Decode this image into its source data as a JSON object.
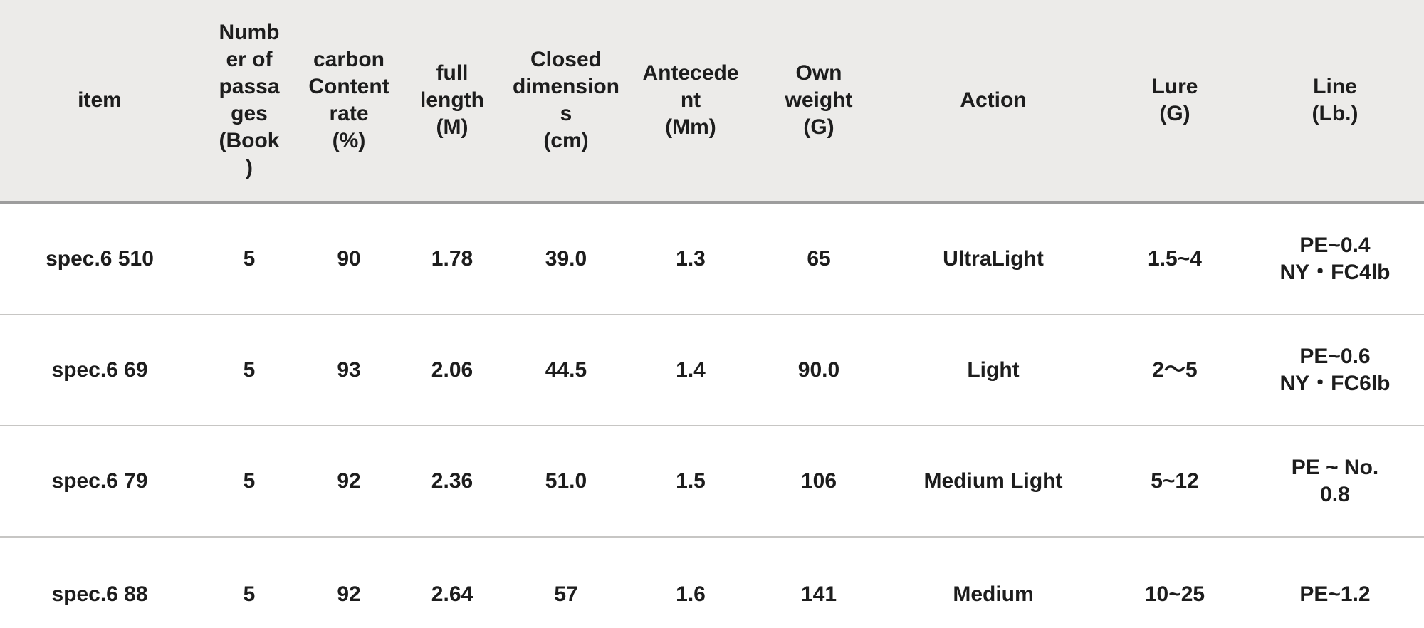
{
  "table": {
    "columns": [
      {
        "id": "item",
        "label": "item"
      },
      {
        "id": "passages",
        "label": "Numb\ner of\npassa\nges\n(Book\n)"
      },
      {
        "id": "carbon-rate",
        "label": "carbon\nContent\nrate\n(%)"
      },
      {
        "id": "full-length",
        "label": "full length\n(M)"
      },
      {
        "id": "closed-dimensions",
        "label": "Closed\ndimension\ns\n(cm)"
      },
      {
        "id": "antecedent",
        "label": "Antecede\nnt\n(Mm)"
      },
      {
        "id": "own-weight",
        "label": "Own\nweight\n(G)"
      },
      {
        "id": "action",
        "label": "Action"
      },
      {
        "id": "lure",
        "label": "Lure\n(G)"
      },
      {
        "id": "line",
        "label": "Line\n(Lb.)"
      }
    ],
    "rows": [
      {
        "cells": [
          "spec.6 510",
          "5",
          "90",
          "1.78",
          "39.0",
          "1.3",
          "65",
          "UltraLight",
          "1.5~4",
          "PE~0.4\nNY・FC4lb"
        ]
      },
      {
        "cells": [
          "spec.6 69",
          "5",
          "93",
          "2.06",
          "44.5",
          "1.4",
          "90.0",
          "Light",
          "2〜5",
          "PE~0.6\nNY・FC6lb"
        ]
      },
      {
        "cells": [
          "spec.6 79",
          "5",
          "92",
          "2.36",
          "51.0",
          "1.5",
          "106",
          "Medium Light",
          "5~12",
          "PE ~ No.\n0.8"
        ]
      },
      {
        "cells": [
          "spec.6 88",
          "5",
          "92",
          "2.64",
          "57",
          "1.6",
          "141",
          "Medium",
          "10~25",
          "PE~1.2"
        ]
      }
    ]
  },
  "colors": {
    "header_background": "#ecebe9",
    "header_border": "#9d9d9d",
    "row_separator": "#c7c6c4",
    "text": "#1d1d1d",
    "body_background": "#ffffff"
  }
}
